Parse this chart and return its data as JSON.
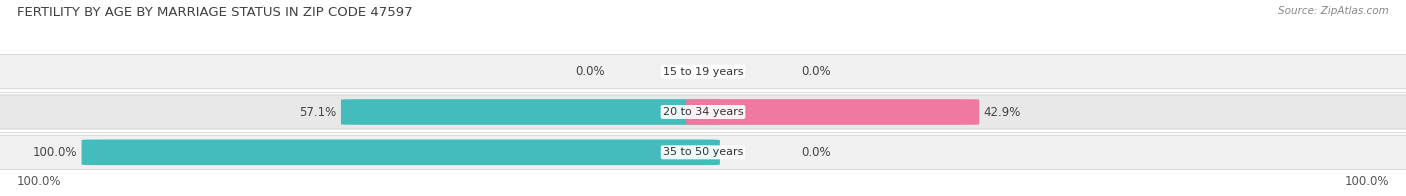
{
  "title": "FERTILITY BY AGE BY MARRIAGE STATUS IN ZIP CODE 47597",
  "source": "Source: ZipAtlas.com",
  "categories": [
    "15 to 19 years",
    "20 to 34 years",
    "35 to 50 years"
  ],
  "married_pct": [
    0.0,
    57.1,
    100.0
  ],
  "unmarried_pct": [
    0.0,
    42.9,
    0.0
  ],
  "married_color": "#45BCBC",
  "unmarried_color": "#F078A0",
  "row_bg_color": "#E8E8E8",
  "row_bg_color_alt": "#F0F0F0",
  "title_fontsize": 9.5,
  "source_fontsize": 7.5,
  "label_fontsize": 8.5,
  "category_fontsize": 8,
  "axis_label_left": "100.0%",
  "axis_label_right": "100.0%",
  "figsize": [
    14.06,
    1.96
  ],
  "dpi": 100
}
